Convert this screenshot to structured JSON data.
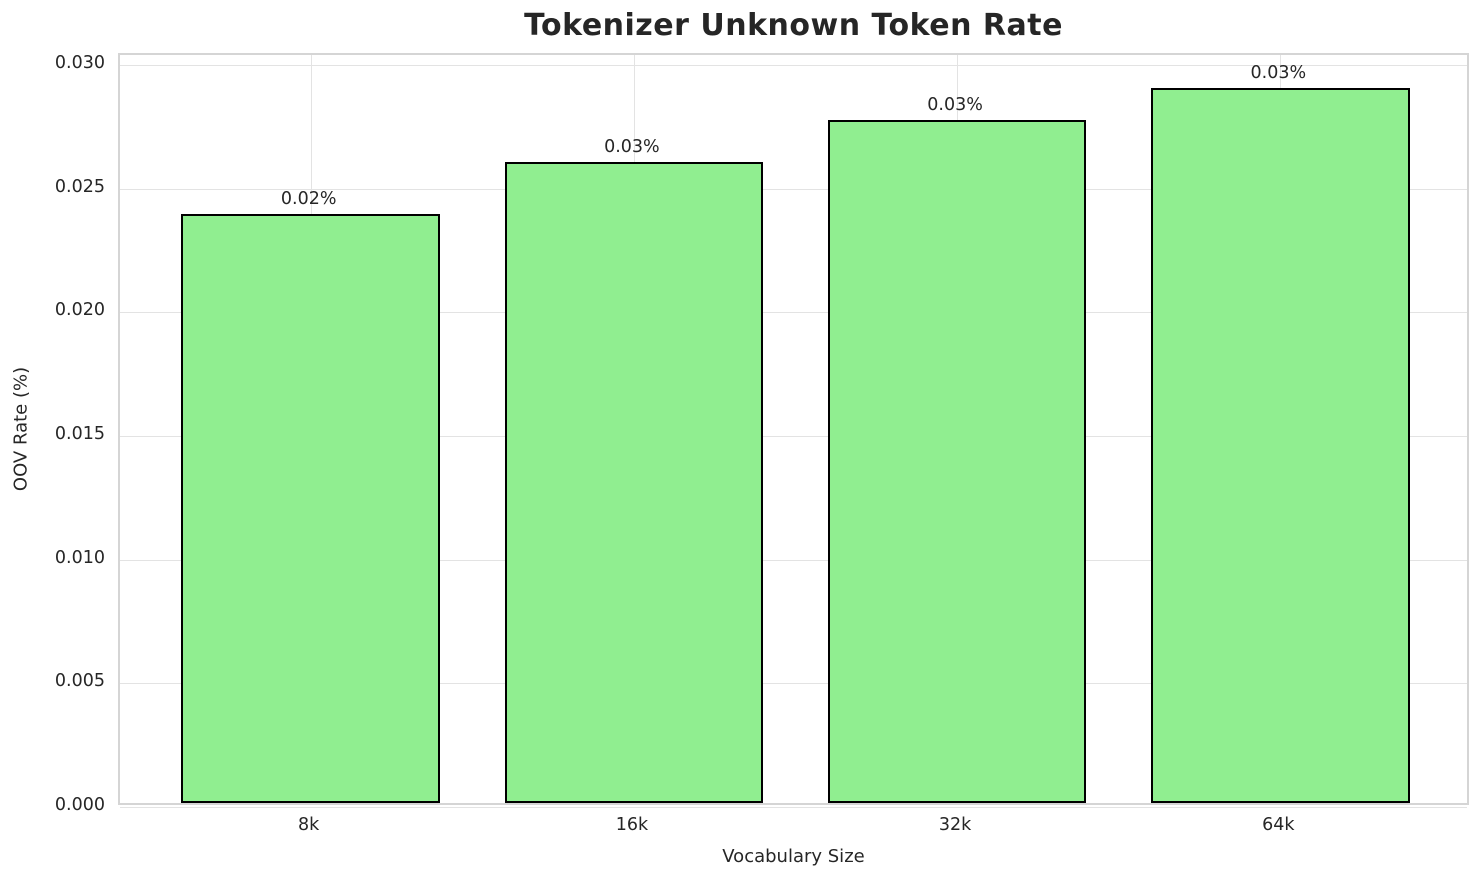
{
  "chart_data": {
    "type": "bar",
    "title": "Tokenizer Unknown Token Rate",
    "xlabel": "Vocabulary Size",
    "ylabel": "OOV Rate (%)",
    "categories": [
      "8k",
      "16k",
      "32k",
      "64k"
    ],
    "values": [
      0.0238,
      0.0259,
      0.0276,
      0.0289
    ],
    "bar_labels": [
      "0.02%",
      "0.03%",
      "0.03%",
      "0.03%"
    ],
    "yticks": [
      0.0,
      0.005,
      0.01,
      0.015,
      0.02,
      0.025,
      0.03
    ],
    "ytick_labels": [
      "0.000",
      "0.005",
      "0.010",
      "0.015",
      "0.020",
      "0.025",
      "0.030"
    ],
    "ylim": [
      0,
      0.0304
    ],
    "xlim": [
      -0.59,
      3.59
    ],
    "bar_width": 0.8,
    "grid": true,
    "legend": null,
    "colors": {
      "bar_fill": "#90EE90",
      "bar_edge": "#000000",
      "grid": "#E3E3E3",
      "spine": "#D5D5D5",
      "text": "#262626",
      "background": "#FFFFFF"
    }
  }
}
